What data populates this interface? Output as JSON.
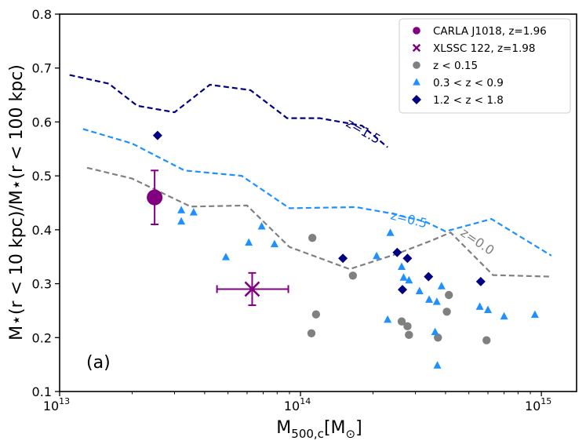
{
  "chart_data": {
    "type": "scatter",
    "panel_label": "(a)",
    "xscale": "log",
    "xlim": [
      10000000000000.0,
      1400000000000000.0
    ],
    "ylim": [
      0.1,
      0.8
    ],
    "xlabel": {
      "main": "M",
      "sub": "500,c",
      "unit_open": "[M",
      "unit_sub": "⊙",
      "unit_close": "]"
    },
    "ylabel": "M⋆(r < 10 kpc)/M⋆(r < 100 kpc)",
    "x_ticks": [
      {
        "value": 10000000000000.0,
        "base": "10",
        "exp": "13"
      },
      {
        "value": 100000000000000.0,
        "base": "10",
        "exp": "14"
      },
      {
        "value": 1000000000000000.0,
        "base": "10",
        "exp": "15"
      }
    ],
    "y_ticks": [
      {
        "value": 0.1,
        "label": "0.1"
      },
      {
        "value": 0.2,
        "label": "0.2"
      },
      {
        "value": 0.3,
        "label": "0.3"
      },
      {
        "value": 0.4,
        "label": "0.4"
      },
      {
        "value": 0.5,
        "label": "0.5"
      },
      {
        "value": 0.6,
        "label": "0.6"
      },
      {
        "value": 0.7,
        "label": "0.7"
      },
      {
        "value": 0.8,
        "label": "0.8"
      }
    ],
    "legend": {
      "position": "top-right",
      "entries": [
        {
          "label": "CARLA J1018, z=1.96",
          "marker": "circle",
          "color": "#800080"
        },
        {
          "label": "XLSSC 122, z=1.98",
          "marker": "x",
          "color": "#800080"
        },
        {
          "label": "z < 0.15",
          "marker": "circle",
          "color": "#808080"
        },
        {
          "label": "0.3 < z < 0.9",
          "marker": "triangle",
          "color": "#1e90ff"
        },
        {
          "label": "1.2 < z < 1.8",
          "marker": "diamond",
          "color": "#000080"
        }
      ]
    },
    "curves": [
      {
        "name": "z=1.5",
        "label": "z=1.5",
        "color": "#000080",
        "x": [
          11000000000000.0,
          16000000000000.0,
          21000000000000.0,
          30000000000000.0,
          42000000000000.0,
          62000000000000.0,
          88000000000000.0,
          120000000000000.0,
          180000000000000.0,
          230000000000000.0
        ],
        "y": [
          0.687,
          0.671,
          0.63,
          0.618,
          0.669,
          0.659,
          0.607,
          0.607,
          0.593,
          0.553
        ]
      },
      {
        "name": "z=0.5",
        "label": "z=0.5",
        "color": "#1e90ff",
        "x": [
          12500000000000.0,
          20000000000000.0,
          33000000000000.0,
          57000000000000.0,
          90000000000000.0,
          170000000000000.0,
          240000000000000.0,
          330000000000000.0,
          400000000000000.0,
          620000000000000.0,
          1100000000000000.0
        ],
        "y": [
          0.587,
          0.56,
          0.51,
          0.5,
          0.44,
          0.442,
          0.43,
          0.415,
          0.397,
          0.42,
          0.352
        ]
      },
      {
        "name": "z=0.0",
        "label": "z=0.0",
        "color": "#808080",
        "x": [
          13000000000000.0,
          20000000000000.0,
          35000000000000.0,
          60000000000000.0,
          90000000000000.0,
          160000000000000.0,
          250000000000000.0,
          350000000000000.0,
          420000000000000.0,
          630000000000000.0,
          1100000000000000.0
        ],
        "y": [
          0.515,
          0.495,
          0.443,
          0.445,
          0.368,
          0.327,
          0.355,
          0.38,
          0.395,
          0.316,
          0.313
        ]
      }
    ],
    "series": [
      {
        "name": "z < 0.15",
        "marker": "circle",
        "color": "#808080",
        "points": [
          [
            112000000000000.0,
            0.385
          ],
          [
            165000000000000.0,
            0.315
          ],
          [
            116000000000000.0,
            0.243
          ],
          [
            111000000000000.0,
            0.208
          ],
          [
            263000000000000.0,
            0.23
          ],
          [
            278000000000000.0,
            0.221
          ],
          [
            282000000000000.0,
            0.205
          ],
          [
            372000000000000.0,
            0.2
          ],
          [
            405000000000000.0,
            0.248
          ],
          [
            413000000000000.0,
            0.279
          ],
          [
            592000000000000.0,
            0.195
          ]
        ]
      },
      {
        "name": "0.3 < z < 0.9",
        "marker": "triangle",
        "color": "#1e90ff",
        "points": [
          [
            32000000000000.0,
            0.436
          ],
          [
            36000000000000.0,
            0.432
          ],
          [
            32000000000000.0,
            0.415
          ],
          [
            69000000000000.0,
            0.406
          ],
          [
            61000000000000.0,
            0.376
          ],
          [
            49000000000000.0,
            0.349
          ],
          [
            78000000000000.0,
            0.373
          ],
          [
            207000000000000.0,
            0.351
          ],
          [
            236000000000000.0,
            0.394
          ],
          [
            263000000000000.0,
            0.331
          ],
          [
            268000000000000.0,
            0.311
          ],
          [
            282000000000000.0,
            0.306
          ],
          [
            312000000000000.0,
            0.286
          ],
          [
            342000000000000.0,
            0.27
          ],
          [
            368000000000000.0,
            0.266
          ],
          [
            385000000000000.0,
            0.295
          ],
          [
            362000000000000.0,
            0.21
          ],
          [
            230000000000000.0,
            0.233
          ],
          [
            370000000000000.0,
            0.148
          ],
          [
            555000000000000.0,
            0.257
          ],
          [
            600000000000000.0,
            0.251
          ],
          [
            700000000000000.0,
            0.239
          ],
          [
            940000000000000.0,
            0.242
          ]
        ]
      },
      {
        "name": "1.2 < z < 1.8",
        "marker": "diamond",
        "color": "#000080",
        "points": [
          [
            25500000000000.0,
            0.575
          ],
          [
            150000000000000.0,
            0.347
          ],
          [
            252000000000000.0,
            0.358
          ],
          [
            278000000000000.0,
            0.347
          ],
          [
            265000000000000.0,
            0.289
          ],
          [
            340000000000000.0,
            0.313
          ],
          [
            560000000000000.0,
            0.304
          ]
        ]
      },
      {
        "name": "CARLA J1018, z=1.96",
        "marker": "circle",
        "color": "#800080",
        "size": "large",
        "points": [
          [
            24800000000000.0,
            0.46
          ]
        ],
        "yerr": [
          [
            0.05,
            0.05
          ]
        ]
      },
      {
        "name": "XLSSC 122, z=1.98",
        "marker": "x",
        "color": "#800080",
        "size": "large",
        "points": [
          [
            63000000000000.0,
            0.29
          ]
        ],
        "yerr": [
          [
            0.03,
            0.03
          ]
        ],
        "xerr_range": [
          [
            45000000000000.0,
            89000000000000.0
          ]
        ]
      }
    ]
  }
}
